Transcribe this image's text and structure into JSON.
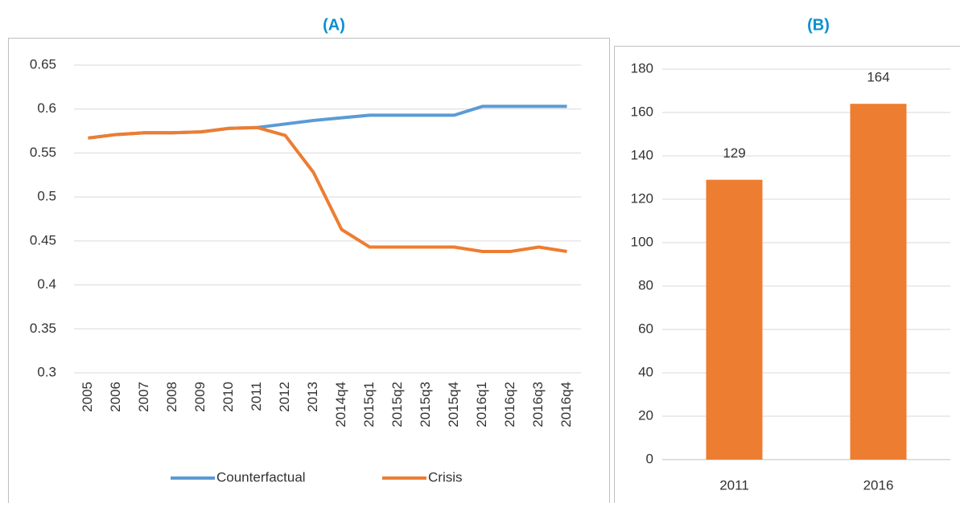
{
  "chart_data": [
    {
      "type": "line",
      "title": "(A)",
      "categories": [
        "2005",
        "2006",
        "2007",
        "2008",
        "2009",
        "2010",
        "2011",
        "2012",
        "2013",
        "2014q4",
        "2015q1",
        "2015q2",
        "2015q3",
        "2015q4",
        "2016q1",
        "2016q2",
        "2016q3",
        "2016q4"
      ],
      "series": [
        {
          "name": "Counterfactual",
          "color": "#5b9bd5",
          "values": [
            0.567,
            0.571,
            0.573,
            0.573,
            0.574,
            0.578,
            0.579,
            0.583,
            0.587,
            0.59,
            0.593,
            0.593,
            0.593,
            0.593,
            0.603,
            0.603,
            0.603,
            0.603
          ]
        },
        {
          "name": "Crisis",
          "color": "#ed7d31",
          "values": [
            0.567,
            0.571,
            0.573,
            0.573,
            0.574,
            0.578,
            0.579,
            0.57,
            0.528,
            0.463,
            0.443,
            0.443,
            0.443,
            0.443,
            0.438,
            0.438,
            0.443,
            0.438
          ]
        }
      ],
      "ylim": [
        0.3,
        0.65
      ],
      "yticks": [
        0.3,
        0.35,
        0.4,
        0.45,
        0.5,
        0.55,
        0.6,
        0.65
      ],
      "grid": true,
      "legend": "bottom"
    },
    {
      "type": "bar",
      "title": "(B)",
      "categories": [
        "2011",
        "2016"
      ],
      "values": [
        129,
        164
      ],
      "color": "#ed7d31",
      "ylim": [
        0,
        180
      ],
      "yticks": [
        0,
        20,
        40,
        60,
        80,
        100,
        120,
        140,
        160,
        180
      ],
      "grid": true,
      "data_labels": true
    }
  ]
}
